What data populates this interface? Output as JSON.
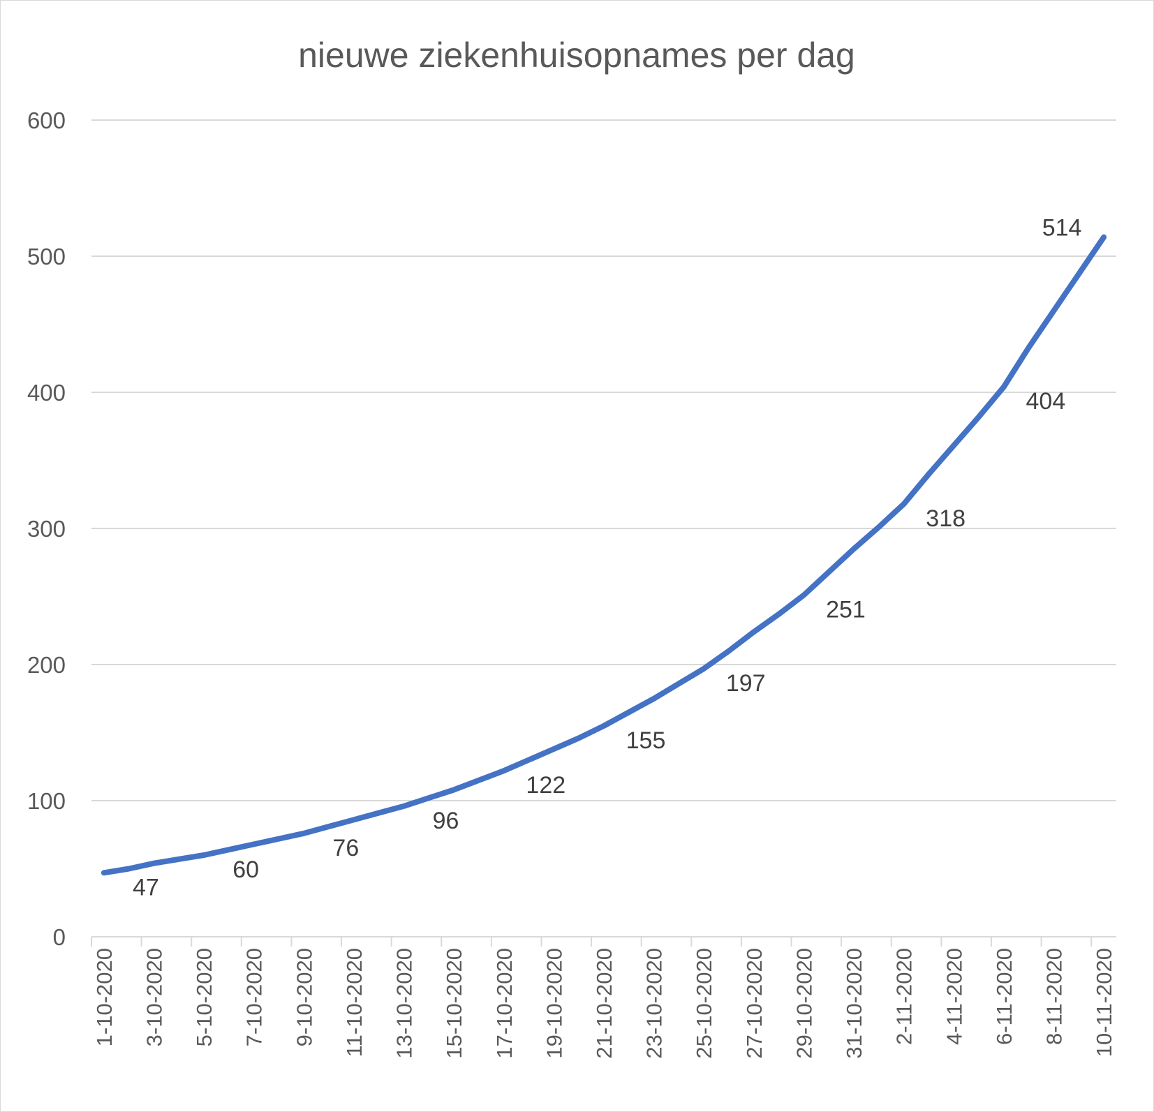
{
  "chart_data": {
    "type": "line",
    "title": "nieuwe ziekenhuisopnames per dag",
    "xlabel": "",
    "ylabel": "",
    "ylim": [
      0,
      600
    ],
    "yticks": [
      0,
      100,
      200,
      300,
      400,
      500,
      600
    ],
    "grid": true,
    "legend": "none",
    "categories": [
      "1-10-2020",
      "2-10-2020",
      "3-10-2020",
      "4-10-2020",
      "5-10-2020",
      "6-10-2020",
      "7-10-2020",
      "8-10-2020",
      "9-10-2020",
      "10-10-2020",
      "11-10-2020",
      "12-10-2020",
      "13-10-2020",
      "14-10-2020",
      "15-10-2020",
      "16-10-2020",
      "17-10-2020",
      "18-10-2020",
      "19-10-2020",
      "20-10-2020",
      "21-10-2020",
      "22-10-2020",
      "23-10-2020",
      "24-10-2020",
      "25-10-2020",
      "26-10-2020",
      "27-10-2020",
      "28-10-2020",
      "29-10-2020",
      "30-10-2020",
      "31-10-2020",
      "1-11-2020",
      "2-11-2020",
      "3-11-2020",
      "4-11-2020",
      "5-11-2020",
      "6-11-2020",
      "7-11-2020",
      "8-11-2020",
      "9-11-2020",
      "10-11-2020"
    ],
    "tick_labels": [
      "1-10-2020",
      "3-10-2020",
      "5-10-2020",
      "7-10-2020",
      "9-10-2020",
      "11-10-2020",
      "13-10-2020",
      "15-10-2020",
      "17-10-2020",
      "19-10-2020",
      "21-10-2020",
      "23-10-2020",
      "25-10-2020",
      "27-10-2020",
      "29-10-2020",
      "31-10-2020",
      "2-11-2020",
      "4-11-2020",
      "6-11-2020",
      "8-11-2020",
      "10-11-2020"
    ],
    "series": [
      {
        "color": "#4472c4",
        "values": [
          47,
          50,
          54,
          57,
          60,
          64,
          68,
          72,
          76,
          81,
          86,
          91,
          96,
          102,
          108,
          115,
          122,
          130,
          138,
          146,
          155,
          165,
          175,
          186,
          197,
          210,
          224,
          237,
          251,
          268,
          285,
          301,
          318,
          340,
          361,
          382,
          404,
          433,
          460,
          487,
          514
        ],
        "data_labels": [
          {
            "date": "1-10-2020",
            "value": 47
          },
          {
            "date": "5-10-2020",
            "value": 60
          },
          {
            "date": "9-10-2020",
            "value": 76
          },
          {
            "date": "13-10-2020",
            "value": 96
          },
          {
            "date": "17-10-2020",
            "value": 122
          },
          {
            "date": "21-10-2020",
            "value": 155
          },
          {
            "date": "25-10-2020",
            "value": 197
          },
          {
            "date": "29-10-2020",
            "value": 251
          },
          {
            "date": "2-11-2020",
            "value": 318
          },
          {
            "date": "6-11-2020",
            "value": 404
          },
          {
            "date": "10-11-2020",
            "value": 514
          }
        ]
      }
    ]
  }
}
